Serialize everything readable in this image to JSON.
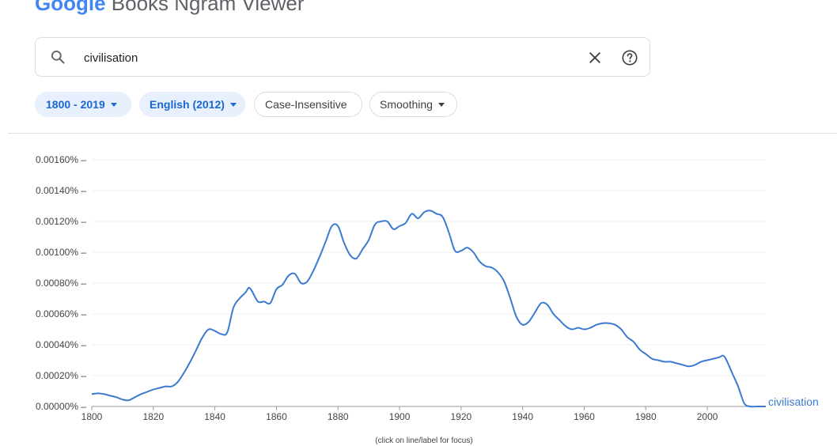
{
  "header": {
    "logo_text": "Google",
    "title_rest": "Books Ngram Viewer"
  },
  "search": {
    "value": "civilisation",
    "placeholder": ""
  },
  "chips": [
    {
      "label": "1800 - 2019",
      "dropdown": true,
      "active": true
    },
    {
      "label": "English (2012)",
      "dropdown": true,
      "active": true
    },
    {
      "label": "Case-Insensitive",
      "dropdown": false,
      "active": false
    },
    {
      "label": "Smoothing",
      "dropdown": true,
      "active": false
    }
  ],
  "colors": {
    "series": "#3b7ad1",
    "chip_active_bg": "#e8f0fe",
    "chip_active_text": "#1967d2"
  },
  "chart_data": {
    "type": "line",
    "xlim": [
      1800,
      2019
    ],
    "ylim": [
      0,
      0.0016
    ],
    "x_ticks": [
      1800,
      1820,
      1840,
      1860,
      1880,
      1900,
      1920,
      1940,
      1960,
      1980,
      2000
    ],
    "y_ticks": [
      0,
      0.0002,
      0.0004,
      0.0006,
      0.0008,
      0.001,
      0.0012,
      0.0014,
      0.0016
    ],
    "y_tick_labels": [
      "0.00000%",
      "0.00020%",
      "0.00040%",
      "0.00060%",
      "0.00080%",
      "0.00100%",
      "0.00120%",
      "0.00140%",
      "0.00160%"
    ],
    "grid": true,
    "note": "(click on line/label for focus)",
    "series": [
      {
        "name": "civilisation",
        "x": [
          1800,
          1802,
          1804,
          1806,
          1808,
          1810,
          1812,
          1814,
          1816,
          1818,
          1820,
          1822,
          1824,
          1826,
          1828,
          1830,
          1832,
          1834,
          1836,
          1838,
          1840,
          1842,
          1844,
          1846,
          1848,
          1850,
          1851,
          1852,
          1854,
          1856,
          1858,
          1860,
          1862,
          1864,
          1866,
          1868,
          1870,
          1872,
          1874,
          1876,
          1878,
          1880,
          1882,
          1884,
          1886,
          1888,
          1890,
          1892,
          1894,
          1896,
          1898,
          1900,
          1902,
          1904,
          1906,
          1908,
          1910,
          1912,
          1914,
          1916,
          1918,
          1920,
          1922,
          1924,
          1926,
          1928,
          1930,
          1932,
          1934,
          1936,
          1938,
          1940,
          1942,
          1944,
          1946,
          1948,
          1950,
          1952,
          1954,
          1956,
          1958,
          1960,
          1962,
          1964,
          1966,
          1968,
          1970,
          1972,
          1974,
          1976,
          1978,
          1980,
          1982,
          1984,
          1986,
          1988,
          1990,
          1992,
          1994,
          1996,
          1998,
          2000,
          2002,
          2004,
          2005,
          2006,
          2008,
          2010,
          2012,
          2014,
          2016,
          2019
        ],
        "y": [
          8e-05,
          8.5e-05,
          8e-05,
          7e-05,
          6e-05,
          4.5e-05,
          4e-05,
          6e-05,
          8e-05,
          9.5e-05,
          0.00011,
          0.00012,
          0.00013,
          0.00013,
          0.00016,
          0.00022,
          0.00029,
          0.00037,
          0.00045,
          0.0005,
          0.00049,
          0.00047,
          0.00048,
          0.00064,
          0.0007,
          0.00074,
          0.00077,
          0.00075,
          0.00068,
          0.00068,
          0.00067,
          0.00076,
          0.00079,
          0.00085,
          0.00086,
          0.0008,
          0.00081,
          0.00088,
          0.00097,
          0.00107,
          0.00117,
          0.00117,
          0.00106,
          0.00098,
          0.00096,
          0.00102,
          0.00108,
          0.00118,
          0.0012,
          0.0012,
          0.00115,
          0.00117,
          0.00119,
          0.00125,
          0.00122,
          0.00126,
          0.00127,
          0.00125,
          0.00123,
          0.00113,
          0.00101,
          0.00101,
          0.00103,
          0.001,
          0.00094,
          0.00091,
          0.0009,
          0.00087,
          0.00081,
          0.0007,
          0.00058,
          0.00053,
          0.00055,
          0.00061,
          0.00067,
          0.00066,
          0.0006,
          0.00056,
          0.00052,
          0.0005,
          0.00051,
          0.0005,
          0.00051,
          0.00053,
          0.00054,
          0.00054,
          0.00053,
          0.0005,
          0.00045,
          0.00042,
          0.00037,
          0.00034,
          0.00031,
          0.0003,
          0.00029,
          0.00029,
          0.00028,
          0.00027,
          0.00026,
          0.00027,
          0.00029,
          0.0003,
          0.00031,
          0.00032,
          0.00033,
          0.00031,
          0.00022,
          0.00013,
          2e-05,
          0,
          0,
          0
        ]
      }
    ]
  }
}
